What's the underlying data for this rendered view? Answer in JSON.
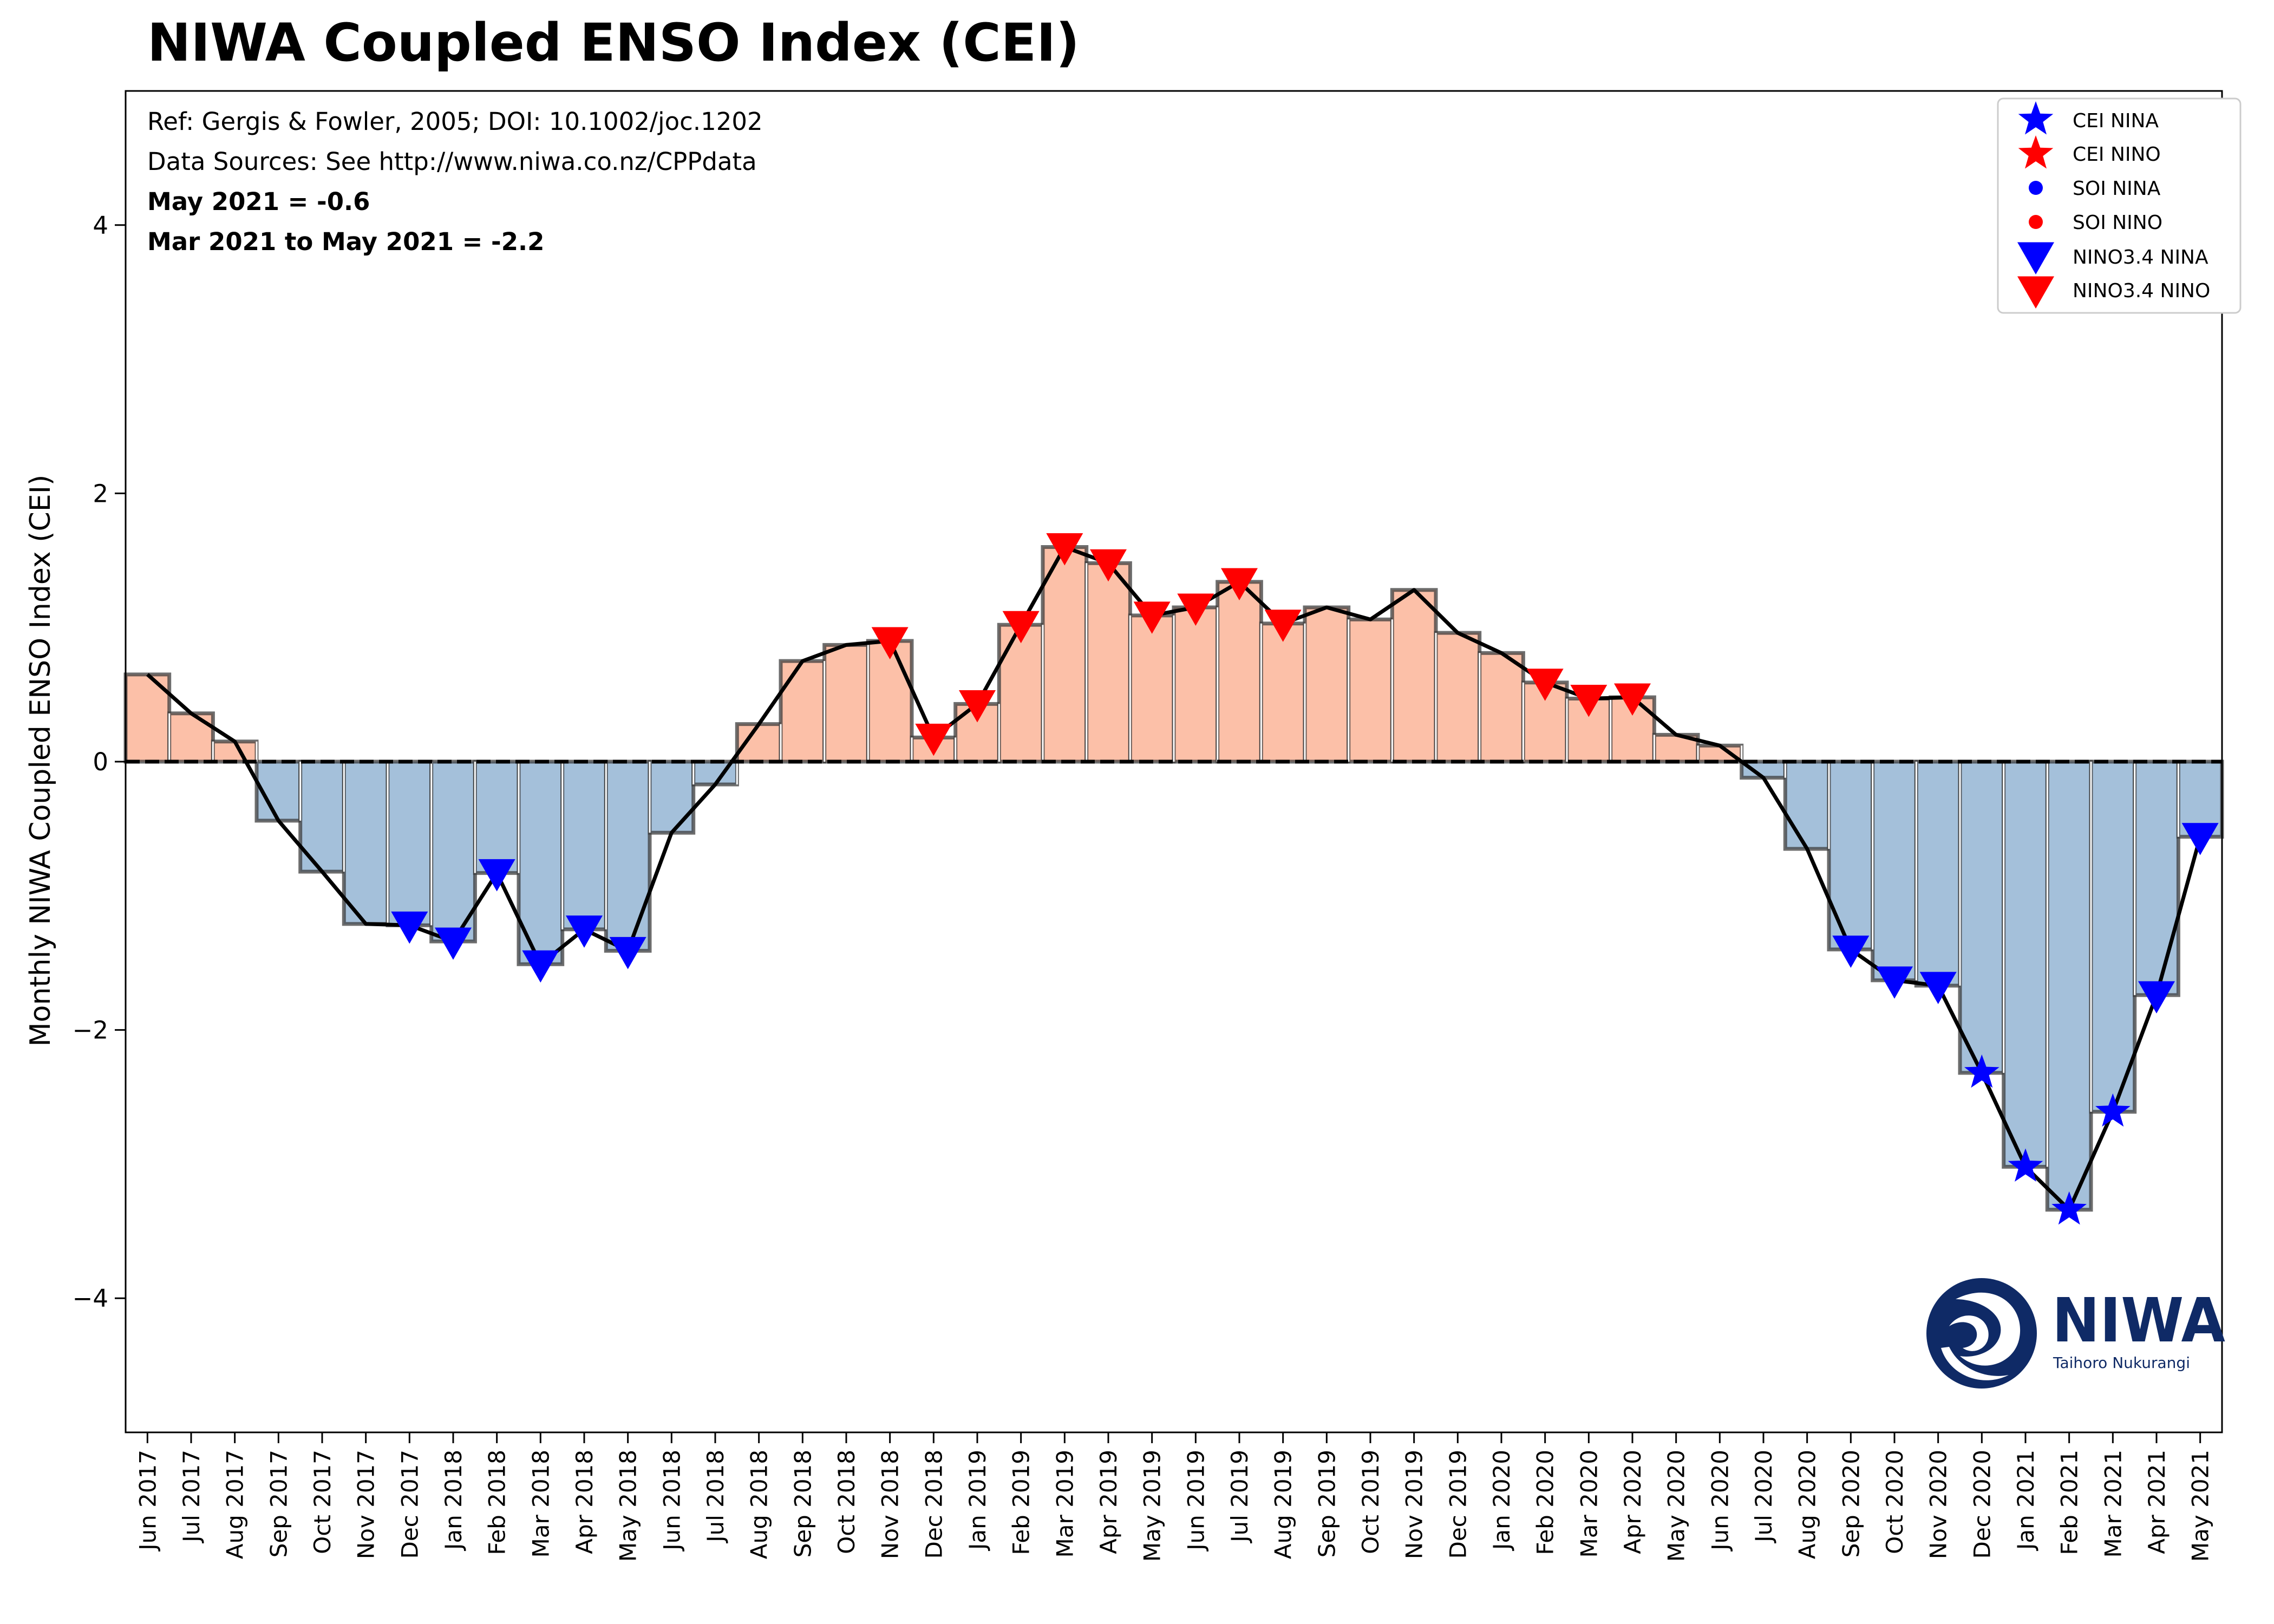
{
  "chart_data": {
    "type": "bar",
    "title": "NIWA Coupled ENSO Index (CEI)",
    "ylabel": "Monthly NIWA Coupled ENSO Index (CEI)",
    "xlabel": "",
    "ylim": [
      -5,
      5
    ],
    "yticks": [
      -4,
      -2,
      0,
      2,
      4
    ],
    "grid": false,
    "legend_position": "top-right",
    "annotations": [
      {
        "text": "Ref: Gergis & Fowler, 2005; DOI: 10.1002/joc.1202",
        "bold": false
      },
      {
        "text": "Data Sources: See http://www.niwa.co.nz/CPPdata",
        "bold": false
      },
      {
        "text": "May 2021 = -0.6",
        "bold": true
      },
      {
        "text": "Mar 2021 to May 2021 = -2.2",
        "bold": true
      }
    ],
    "categories": [
      "Jun 2017",
      "Jul 2017",
      "Aug 2017",
      "Sep 2017",
      "Oct 2017",
      "Nov 2017",
      "Dec 2017",
      "Jan 2018",
      "Feb 2018",
      "Mar 2018",
      "Apr 2018",
      "May 2018",
      "Jun 2018",
      "Jul 2018",
      "Aug 2018",
      "Sep 2018",
      "Oct 2018",
      "Nov 2018",
      "Dec 2018",
      "Jan 2019",
      "Feb 2019",
      "Mar 2019",
      "Apr 2019",
      "May 2019",
      "Jun 2019",
      "Jul 2019",
      "Aug 2019",
      "Sep 2019",
      "Oct 2019",
      "Nov 2019",
      "Dec 2019",
      "Jan 2020",
      "Feb 2020",
      "Mar 2020",
      "Apr 2020",
      "May 2020",
      "Jun 2020",
      "Jul 2020",
      "Aug 2020",
      "Sep 2020",
      "Oct 2020",
      "Nov 2020",
      "Dec 2020",
      "Jan 2021",
      "Feb 2021",
      "Mar 2021",
      "Apr 2021",
      "May 2021"
    ],
    "values": [
      0.65,
      0.36,
      0.15,
      -0.44,
      -0.82,
      -1.21,
      -1.22,
      -1.34,
      -0.83,
      -1.51,
      -1.25,
      -1.41,
      -0.53,
      -0.17,
      0.28,
      0.75,
      0.87,
      0.9,
      0.18,
      0.43,
      1.02,
      1.6,
      1.48,
      1.09,
      1.15,
      1.34,
      1.03,
      1.15,
      1.06,
      1.28,
      0.96,
      0.81,
      0.59,
      0.47,
      0.48,
      0.2,
      0.12,
      -0.12,
      -0.65,
      -1.4,
      -1.63,
      -1.67,
      -2.32,
      -3.02,
      -3.34,
      -2.61,
      -1.74,
      -0.56
    ],
    "nino34_markers": [
      {
        "category": "Dec 2017",
        "type": "NINA"
      },
      {
        "category": "Jan 2018",
        "type": "NINA"
      },
      {
        "category": "Feb 2018",
        "type": "NINA"
      },
      {
        "category": "Mar 2018",
        "type": "NINA"
      },
      {
        "category": "Apr 2018",
        "type": "NINA"
      },
      {
        "category": "May 2018",
        "type": "NINA"
      },
      {
        "category": "Nov 2018",
        "type": "NINO"
      },
      {
        "category": "Dec 2018",
        "type": "NINO"
      },
      {
        "category": "Jan 2019",
        "type": "NINO"
      },
      {
        "category": "Feb 2019",
        "type": "NINO"
      },
      {
        "category": "Mar 2019",
        "type": "NINO"
      },
      {
        "category": "Apr 2019",
        "type": "NINO"
      },
      {
        "category": "May 2019",
        "type": "NINO"
      },
      {
        "category": "Jun 2019",
        "type": "NINO"
      },
      {
        "category": "Jul 2019",
        "type": "NINO"
      },
      {
        "category": "Aug 2019",
        "type": "NINO"
      },
      {
        "category": "Feb 2020",
        "type": "NINO"
      },
      {
        "category": "Mar 2020",
        "type": "NINO"
      },
      {
        "category": "Apr 2020",
        "type": "NINO"
      },
      {
        "category": "Sep 2020",
        "type": "NINA"
      },
      {
        "category": "Oct 2020",
        "type": "NINA"
      },
      {
        "category": "Nov 2020",
        "type": "NINA"
      },
      {
        "category": "Apr 2021",
        "type": "NINA"
      },
      {
        "category": "May 2021",
        "type": "NINA"
      }
    ],
    "cei_markers": [
      {
        "category": "Dec 2020",
        "type": "NINA"
      },
      {
        "category": "Jan 2021",
        "type": "NINA"
      },
      {
        "category": "Feb 2021",
        "type": "NINA"
      },
      {
        "category": "Mar 2021",
        "type": "NINA"
      }
    ],
    "legend": [
      {
        "label": "CEI NINA",
        "marker": "star",
        "color": "#0000ff"
      },
      {
        "label": "CEI NINO",
        "marker": "star",
        "color": "#ff0000"
      },
      {
        "label": "SOI NINA",
        "marker": "dot",
        "color": "#0000ff"
      },
      {
        "label": "SOI NINO",
        "marker": "dot",
        "color": "#ff0000"
      },
      {
        "label": "NINO3.4 NINA",
        "marker": "triangle-down",
        "color": "#0000ff"
      },
      {
        "label": "NINO3.4 NINO",
        "marker": "triangle-down",
        "color": "#ff0000"
      }
    ],
    "colors": {
      "positive_bar": "#fcc0a8",
      "negative_bar": "#a4c0da",
      "line": "#000000",
      "nina": "#0000ff",
      "nino": "#ff0000"
    }
  },
  "logo": {
    "name": "NIWA",
    "tagline": "Taihoro Nukurangi",
    "icon": "niwa-swirl-icon",
    "color": "#0f2a66"
  }
}
